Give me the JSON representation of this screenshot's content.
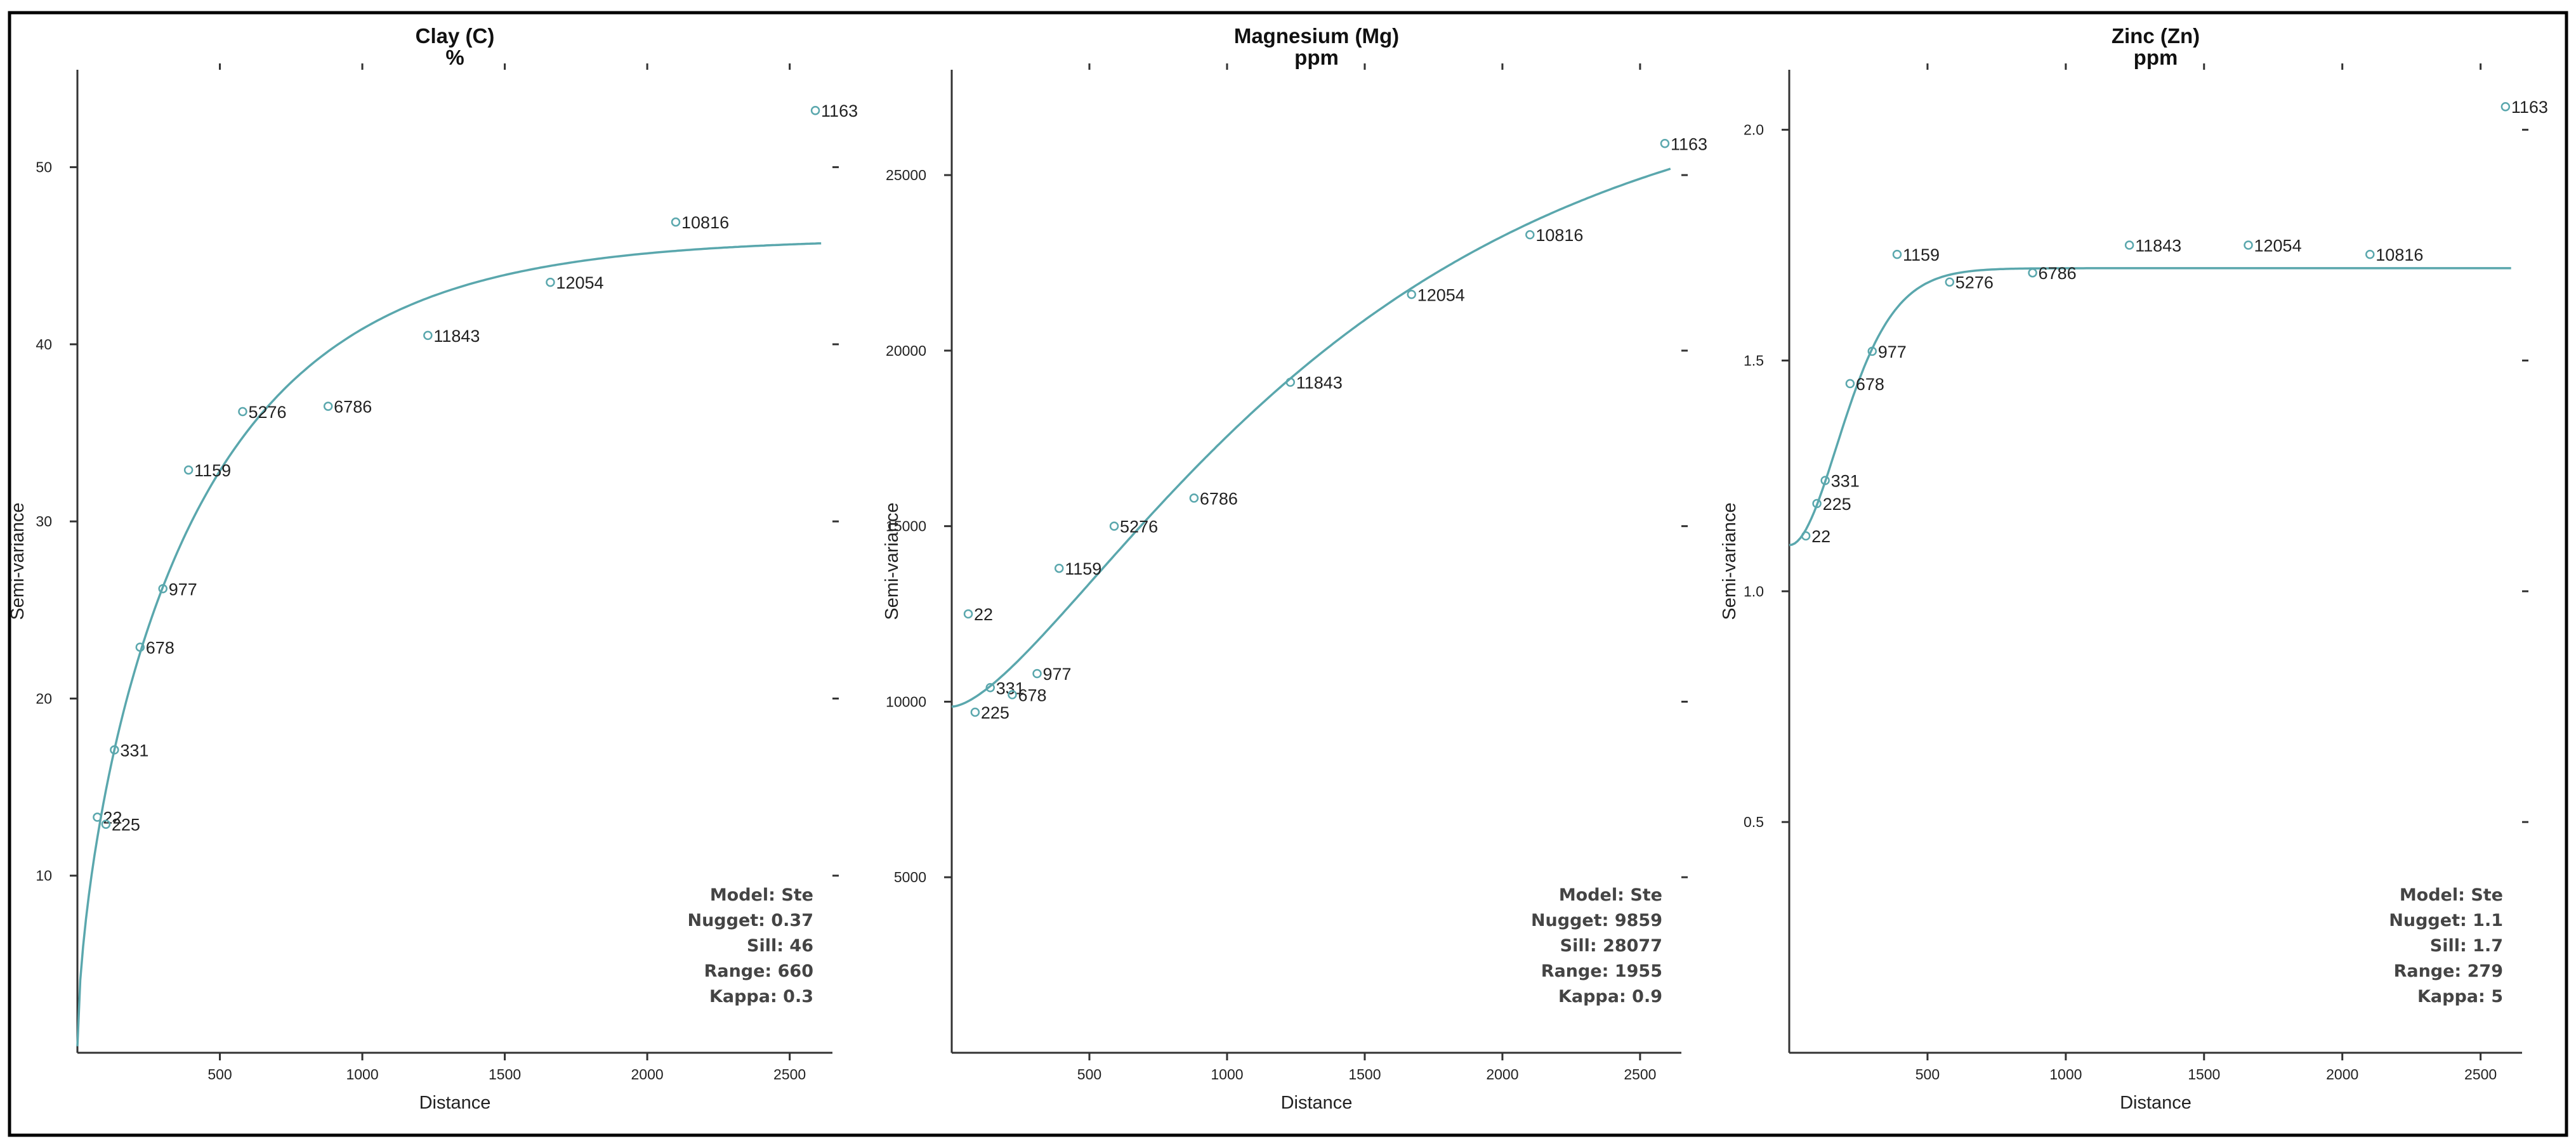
{
  "chart_data": [
    {
      "type": "scatter",
      "title": "Clay (C)",
      "subtitle": "%",
      "xlabel": "Distance",
      "ylabel": "Semi-variance",
      "xlim": [
        0,
        2650
      ],
      "ylim": [
        0,
        55.5
      ],
      "xticks": [
        500,
        1000,
        1500,
        2000,
        2500
      ],
      "yticks": [
        10,
        20,
        30,
        40,
        50
      ],
      "points": [
        {
          "x": 70,
          "y": 13.3,
          "label": "22"
        },
        {
          "x": 100,
          "y": 12.9,
          "label": "225"
        },
        {
          "x": 130,
          "y": 17.1,
          "label": "331"
        },
        {
          "x": 220,
          "y": 22.9,
          "label": "678"
        },
        {
          "x": 300,
          "y": 26.2,
          "label": "977"
        },
        {
          "x": 390,
          "y": 32.9,
          "label": "1159"
        },
        {
          "x": 580,
          "y": 36.2,
          "label": "5276"
        },
        {
          "x": 880,
          "y": 36.5,
          "label": "6786"
        },
        {
          "x": 1230,
          "y": 40.5,
          "label": "11843"
        },
        {
          "x": 1660,
          "y": 43.5,
          "label": "12054"
        },
        {
          "x": 2100,
          "y": 46.9,
          "label": "10816"
        },
        {
          "x": 2590,
          "y": 53.2,
          "label": "1163"
        }
      ],
      "model": {
        "nugget": 0.37,
        "sill": 46,
        "range": 660,
        "kappa": 0.3
      },
      "info": [
        "Model: Ste",
        "Nugget: 0.37",
        "Sill: 46",
        "Range: 660",
        "Kappa: 0.3"
      ],
      "color": "#5aa7ad"
    },
    {
      "type": "scatter",
      "title": "Magnesium (Mg)",
      "subtitle": "ppm",
      "xlabel": "Distance",
      "ylabel": "Semi-variance",
      "xlim": [
        0,
        2650
      ],
      "ylim": [
        0,
        28000
      ],
      "xticks": [
        500,
        1000,
        1500,
        2000,
        2500
      ],
      "yticks": [
        5000,
        10000,
        15000,
        20000,
        25000
      ],
      "points": [
        {
          "x": 60,
          "y": 12500,
          "label": "22"
        },
        {
          "x": 85,
          "y": 9700,
          "label": "225"
        },
        {
          "x": 140,
          "y": 10400,
          "label": "331"
        },
        {
          "x": 220,
          "y": 10200,
          "label": "678"
        },
        {
          "x": 310,
          "y": 10800,
          "label": "977"
        },
        {
          "x": 390,
          "y": 13800,
          "label": "1159"
        },
        {
          "x": 590,
          "y": 15000,
          "label": "5276"
        },
        {
          "x": 880,
          "y": 15800,
          "label": "6786"
        },
        {
          "x": 1230,
          "y": 19100,
          "label": "11843"
        },
        {
          "x": 1670,
          "y": 21600,
          "label": "12054"
        },
        {
          "x": 2100,
          "y": 23300,
          "label": "10816"
        },
        {
          "x": 2590,
          "y": 25900,
          "label": "1163"
        }
      ],
      "model": {
        "nugget": 9859,
        "sill": 28077,
        "range": 1955,
        "kappa": 0.9
      },
      "info": [
        "Model: Ste",
        "Nugget: 9859",
        "Sill: 28077",
        "Range: 1955",
        "Kappa: 0.9"
      ],
      "color": "#5aa7ad"
    },
    {
      "type": "scatter",
      "title": "Zinc (Zn)",
      "subtitle": "ppm",
      "xlabel": "Distance",
      "ylabel": "Semi-variance",
      "xlim": [
        0,
        2650
      ],
      "ylim": [
        0,
        2.13
      ],
      "xticks": [
        500,
        1000,
        1500,
        2000,
        2500
      ],
      "yticks": [
        0.5,
        1.0,
        1.5,
        2.0
      ],
      "yticklabels": [
        "0.5",
        "1.0",
        "1.5",
        "2.0"
      ],
      "points": [
        {
          "x": 60,
          "y": 1.12,
          "label": "22"
        },
        {
          "x": 100,
          "y": 1.19,
          "label": "225"
        },
        {
          "x": 130,
          "y": 1.24,
          "label": "331"
        },
        {
          "x": 220,
          "y": 1.45,
          "label": "678"
        },
        {
          "x": 300,
          "y": 1.52,
          "label": "977"
        },
        {
          "x": 390,
          "y": 1.73,
          "label": "1159"
        },
        {
          "x": 580,
          "y": 1.67,
          "label": "5276"
        },
        {
          "x": 880,
          "y": 1.69,
          "label": "6786"
        },
        {
          "x": 1230,
          "y": 1.75,
          "label": "11843"
        },
        {
          "x": 1660,
          "y": 1.75,
          "label": "12054"
        },
        {
          "x": 2100,
          "y": 1.73,
          "label": "10816"
        },
        {
          "x": 2590,
          "y": 2.05,
          "label": "1163"
        }
      ],
      "model": {
        "nugget": 1.1,
        "sill": 1.7,
        "range": 279,
        "kappa": 5
      },
      "info": [
        "Model: Ste",
        "Nugget: 1.1",
        "Sill: 1.7",
        "Range: 279",
        "Kappa: 5"
      ],
      "color": "#5aa7ad"
    }
  ]
}
